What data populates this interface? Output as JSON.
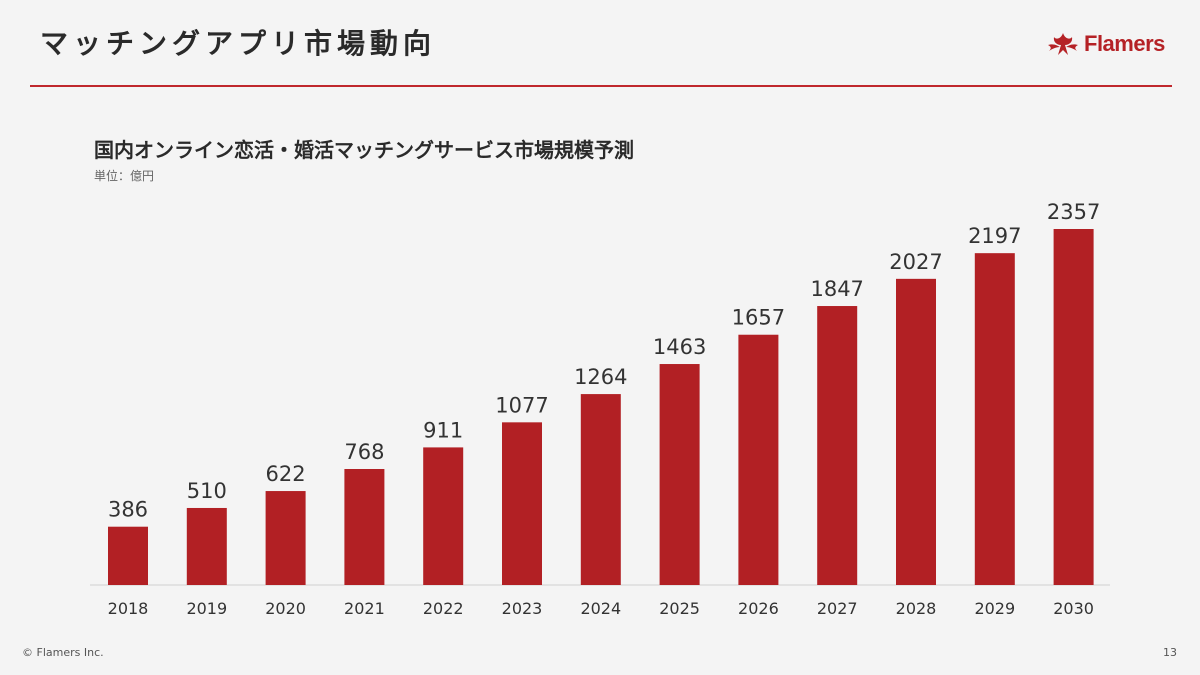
{
  "slide": {
    "title": "マッチングアプリ市場動向",
    "logo_text": "Flamers",
    "copyright": "© Flamers Inc.",
    "page_number": "13"
  },
  "colors": {
    "accent": "#b52226",
    "bar": "#b22024",
    "background": "#f4f4f4"
  },
  "chart_data": {
    "type": "bar",
    "title": "国内オンライン恋活・婚活マッチングサービス市場規模予測",
    "unit_label": "単位：億円",
    "categories": [
      "2018",
      "2019",
      "2020",
      "2021",
      "2022",
      "2023",
      "2024",
      "2025",
      "2026",
      "2027",
      "2028",
      "2029",
      "2030"
    ],
    "values": [
      386,
      510,
      622,
      768,
      911,
      1077,
      1264,
      1463,
      1657,
      1847,
      2027,
      2197,
      2357
    ],
    "ylim": [
      0,
      2357
    ],
    "grid": false,
    "legend": "none"
  }
}
